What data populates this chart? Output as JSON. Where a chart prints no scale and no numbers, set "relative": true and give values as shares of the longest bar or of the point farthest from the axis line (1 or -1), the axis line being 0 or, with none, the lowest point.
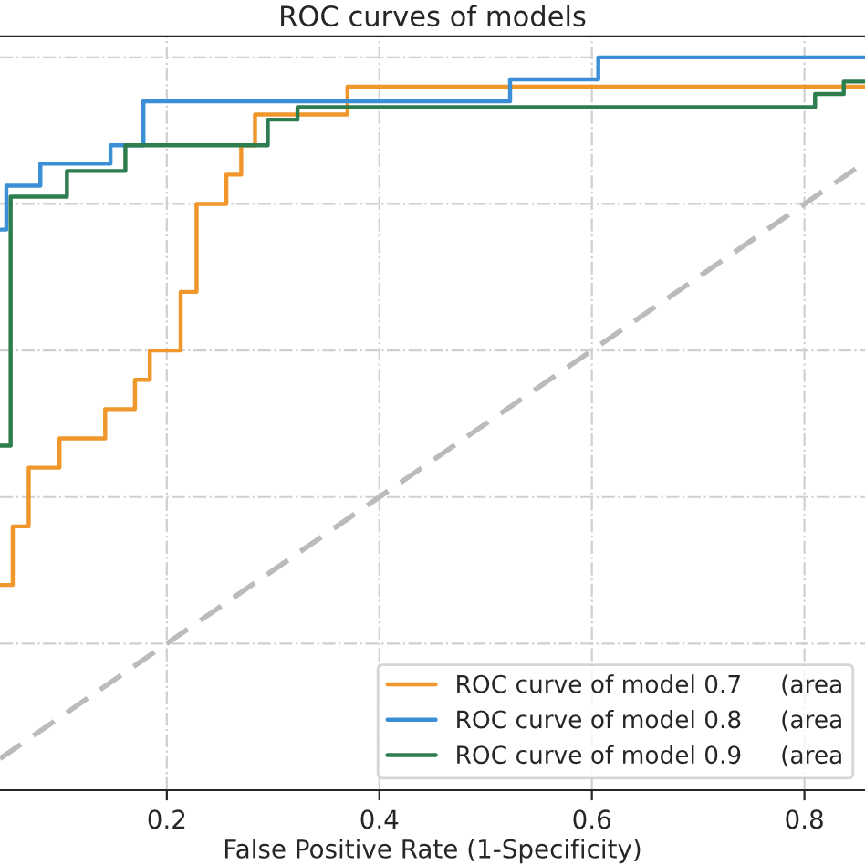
{
  "chart_data": {
    "type": "step",
    "title": "ROC curves of models",
    "xlabel": "False Positive Rate (1-Specificity)",
    "xlim": [
      0.043,
      0.857
    ],
    "xticks": [
      0.2,
      0.4,
      0.6,
      0.8
    ],
    "relative": true,
    "tick_labels": "x",
    "grid": true,
    "legend": "bottom right",
    "series": [
      {
        "name": "ROC curve of model 0.7     (area",
        "color": "#f0962a",
        "x": [
          0.043,
          0.055,
          0.07,
          0.099,
          0.142,
          0.17,
          0.184,
          0.213,
          0.228,
          0.256,
          0.27,
          0.283,
          0.37,
          0.857
        ],
        "values": [
          0.28,
          0.36,
          0.44,
          0.48,
          0.52,
          0.56,
          0.6,
          0.68,
          0.8,
          0.84,
          0.88,
          0.922,
          0.96,
          0.96
        ]
      },
      {
        "name": "ROC curve of model 0.8     (area",
        "color": "#3a8fd6",
        "x": [
          0.043,
          0.049,
          0.081,
          0.147,
          0.178,
          0.523,
          0.606,
          0.857
        ],
        "values": [
          0.765,
          0.825,
          0.855,
          0.88,
          0.94,
          0.97,
          1.0,
          1.0
        ]
      },
      {
        "name": "ROC curve of model 0.9     (area",
        "color": "#2e7d4f",
        "x": [
          0.043,
          0.053,
          0.106,
          0.161,
          0.295,
          0.323,
          0.81,
          0.837,
          0.857
        ],
        "values": [
          0.47,
          0.81,
          0.845,
          0.88,
          0.915,
          0.932,
          0.95,
          0.967,
          0.967
        ]
      },
      {
        "type": "line",
        "line_style": "dashed",
        "color": "#bbbbbb",
        "x": [
          0.043,
          0.857
        ],
        "values": [
          0.043,
          0.857
        ]
      }
    ]
  }
}
